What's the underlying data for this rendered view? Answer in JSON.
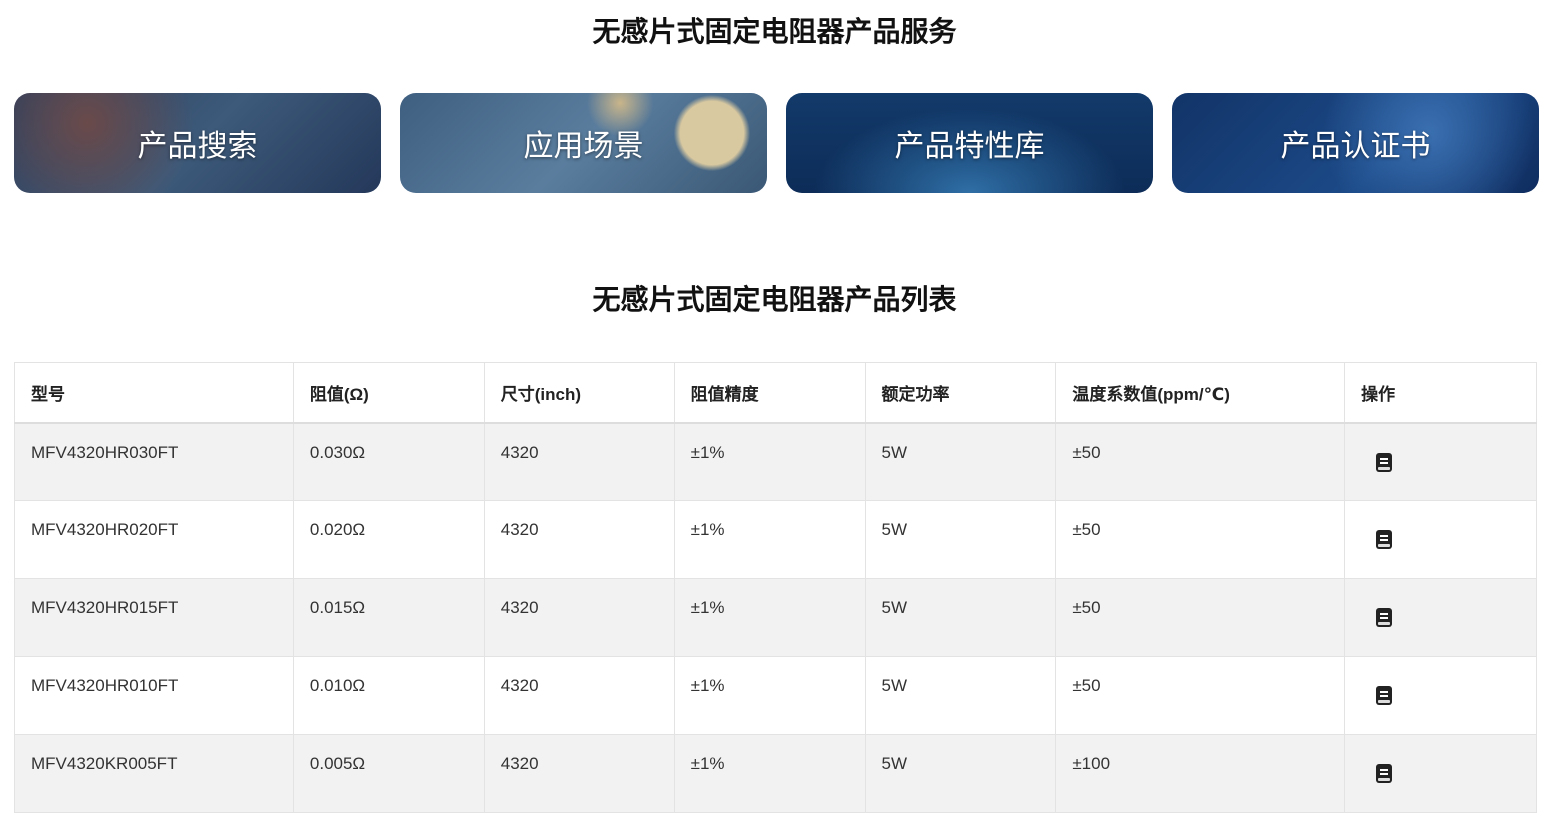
{
  "services": {
    "title": "无感片式固定电阻器产品服务",
    "cards": [
      "产品搜索",
      "应用场景",
      "产品特性库",
      "产品认证书"
    ]
  },
  "list": {
    "title": "无感片式固定电阻器产品列表",
    "columns": [
      "型号",
      "阻值(Ω)",
      "尺寸(inch)",
      "阻值精度",
      "额定功率",
      "温度系数值(ppm/℃)",
      "操作"
    ],
    "rows": [
      [
        "MFV4320HR030FT",
        "0.030Ω",
        "4320",
        "±1%",
        "5W",
        "±50"
      ],
      [
        "MFV4320HR020FT",
        "0.020Ω",
        "4320",
        "±1%",
        "5W",
        "±50"
      ],
      [
        "MFV4320HR015FT",
        "0.015Ω",
        "4320",
        "±1%",
        "5W",
        "±50"
      ],
      [
        "MFV4320HR010FT",
        "0.010Ω",
        "4320",
        "±1%",
        "5W",
        "±50"
      ],
      [
        "MFV4320KR005FT",
        "0.005Ω",
        "4320",
        "±1%",
        "5W",
        "±100"
      ]
    ],
    "action_icon": "book-icon"
  }
}
